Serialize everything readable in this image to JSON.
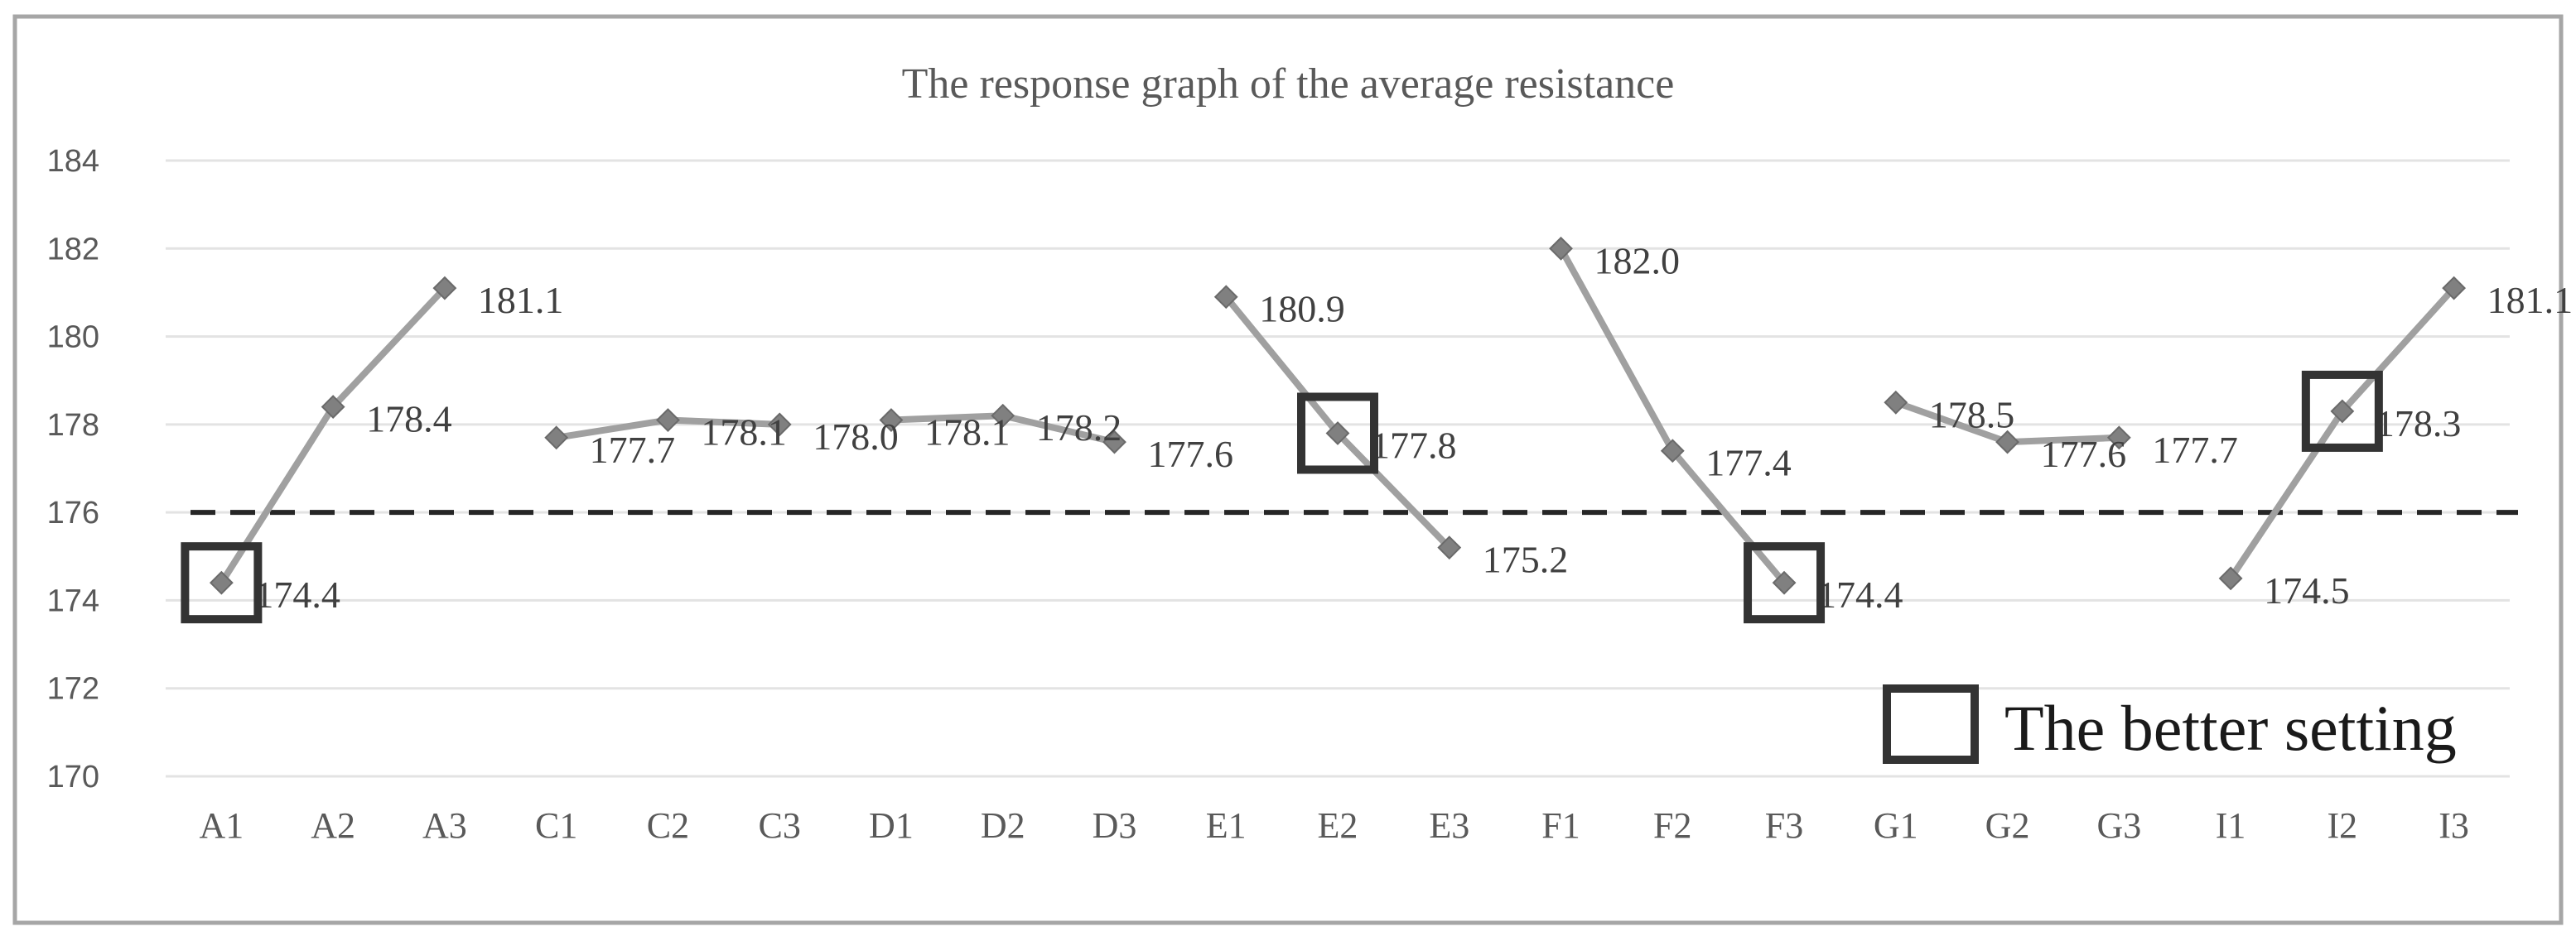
{
  "chart_data": {
    "type": "line",
    "title": "The response graph of the average resistance",
    "xlabel": "",
    "ylabel": "",
    "ylim": [
      170,
      184
    ],
    "yticks": [
      170,
      172,
      174,
      176,
      178,
      180,
      182,
      184
    ],
    "grid": true,
    "categories": [
      "A1",
      "A2",
      "A3",
      "C1",
      "C2",
      "C3",
      "D1",
      "D2",
      "D3",
      "E1",
      "E2",
      "E3",
      "F1",
      "F2",
      "F3",
      "G1",
      "G2",
      "G3",
      "I1",
      "I2",
      "I3"
    ],
    "groups": [
      {
        "factor": "A",
        "points": [
          {
            "x": "A1",
            "y": 174.4,
            "label": "174.4"
          },
          {
            "x": "A2",
            "y": 178.4,
            "label": "178.4"
          },
          {
            "x": "A3",
            "y": 181.1,
            "label": "181.1"
          }
        ]
      },
      {
        "factor": "C",
        "points": [
          {
            "x": "C1",
            "y": 177.7,
            "label": "177.7"
          },
          {
            "x": "C2",
            "y": 178.1,
            "label": "178.1"
          },
          {
            "x": "C3",
            "y": 178.0,
            "label": "178.0"
          }
        ]
      },
      {
        "factor": "D",
        "points": [
          {
            "x": "D1",
            "y": 178.1,
            "label": "178.1"
          },
          {
            "x": "D2",
            "y": 178.2,
            "label": "178.2"
          },
          {
            "x": "D3",
            "y": 177.6,
            "label": "177.6"
          }
        ]
      },
      {
        "factor": "E",
        "points": [
          {
            "x": "E1",
            "y": 180.9,
            "label": "180.9"
          },
          {
            "x": "E2",
            "y": 177.8,
            "label": "177.8"
          },
          {
            "x": "E3",
            "y": 175.2,
            "label": "175.2"
          }
        ]
      },
      {
        "factor": "F",
        "points": [
          {
            "x": "F1",
            "y": 182.0,
            "label": "182.0"
          },
          {
            "x": "F2",
            "y": 177.4,
            "label": "177.4"
          },
          {
            "x": "F3",
            "y": 174.4,
            "label": "174.4"
          }
        ]
      },
      {
        "factor": "G",
        "points": [
          {
            "x": "G1",
            "y": 178.5,
            "label": "178.5"
          },
          {
            "x": "G2",
            "y": 177.6,
            "label": "177.6"
          },
          {
            "x": "G3",
            "y": 177.7,
            "label": "177.7"
          }
        ]
      },
      {
        "factor": "I",
        "points": [
          {
            "x": "I1",
            "y": 174.5,
            "label": "174.5"
          },
          {
            "x": "I2",
            "y": 178.3,
            "label": "178.3"
          },
          {
            "x": "I3",
            "y": 181.1,
            "label": "181.1"
          }
        ]
      }
    ],
    "reference_line": {
      "y": 176,
      "style": "dashed"
    },
    "highlighted": [
      "A1",
      "E2",
      "F3",
      "I2"
    ],
    "legend": {
      "label": "The better setting",
      "position": "bottom-right"
    },
    "colors": {
      "line": "#a0a0a0",
      "marker": "#808080",
      "reference": "#262626",
      "box": "#333333"
    }
  }
}
